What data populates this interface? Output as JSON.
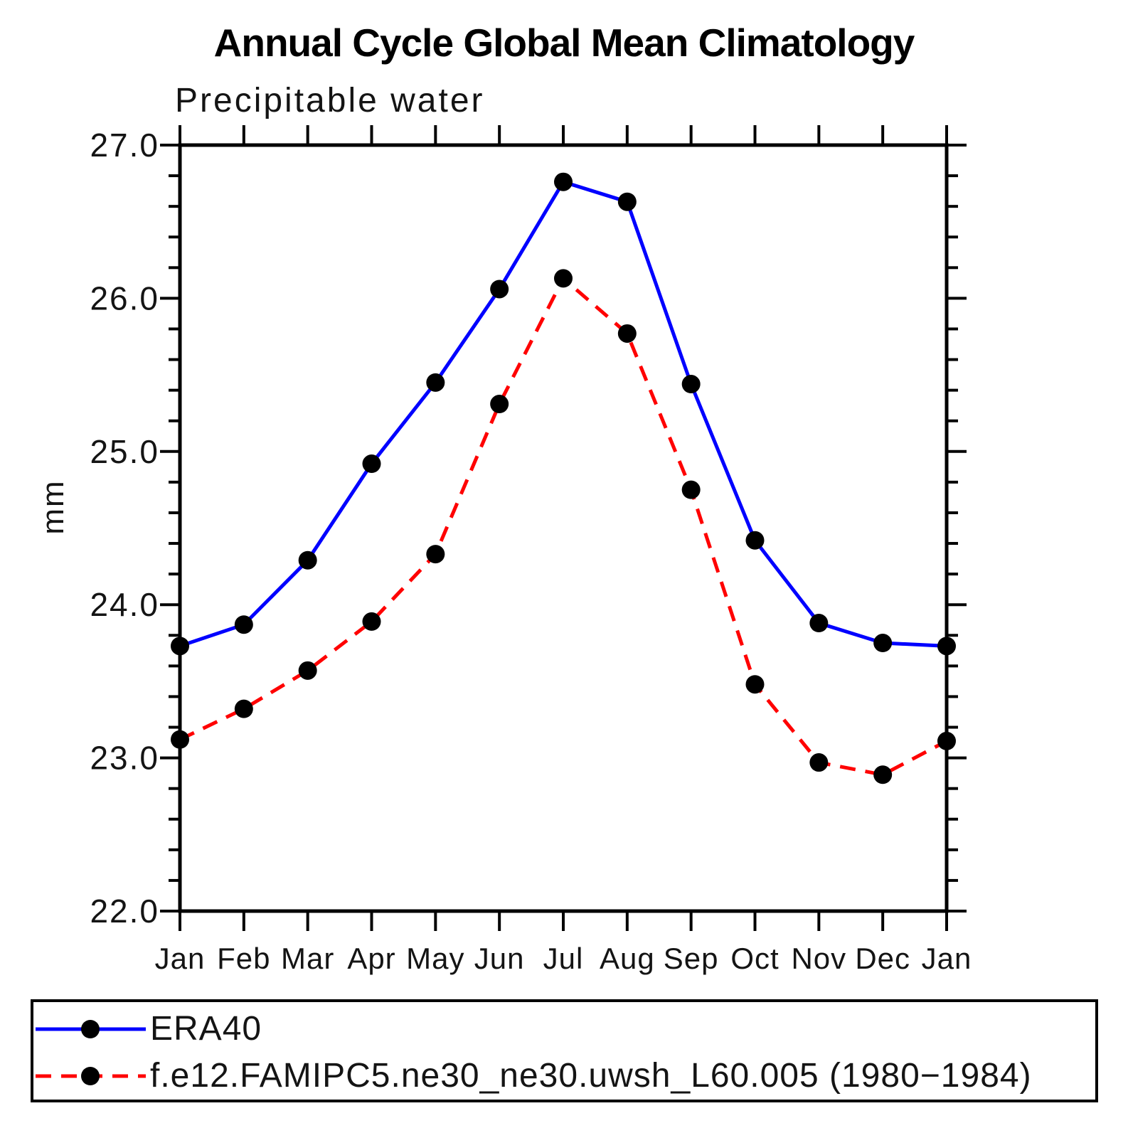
{
  "title": "Annual Cycle Global Mean Climatology",
  "subtitle": "Precipitable water",
  "ylabel": "mm",
  "chart_data": {
    "type": "line",
    "categories": [
      "Jan",
      "Feb",
      "Mar",
      "Apr",
      "May",
      "Jun",
      "Jul",
      "Aug",
      "Sep",
      "Oct",
      "Nov",
      "Dec",
      "Jan"
    ],
    "series": [
      {
        "name": "ERA40",
        "color": "#0000ff",
        "line_style": "solid",
        "marker": "filled-circle",
        "marker_color": "#000000",
        "values": [
          23.73,
          23.87,
          24.29,
          24.92,
          25.45,
          26.06,
          26.76,
          26.63,
          25.44,
          24.42,
          23.88,
          23.75,
          23.73
        ]
      },
      {
        "name": "f.e12.FAMIPC5.ne30_ne30.uwsh_L60.005 (1980−1984)",
        "color": "#ff0000",
        "line_style": "dashed",
        "marker": "filled-circle",
        "marker_color": "#000000",
        "values": [
          23.12,
          23.32,
          23.57,
          23.89,
          24.33,
          25.31,
          26.13,
          25.77,
          24.75,
          23.48,
          22.97,
          22.89,
          23.11
        ]
      }
    ],
    "xlabel": "",
    "ylim": [
      22.0,
      27.0
    ],
    "y_major_step": 1.0,
    "y_minor_step": 0.2,
    "y_tick_labels": [
      "22.0",
      "23.0",
      "24.0",
      "25.0",
      "26.0",
      "27.0"
    ],
    "grid": false,
    "legend_position": "bottom"
  }
}
